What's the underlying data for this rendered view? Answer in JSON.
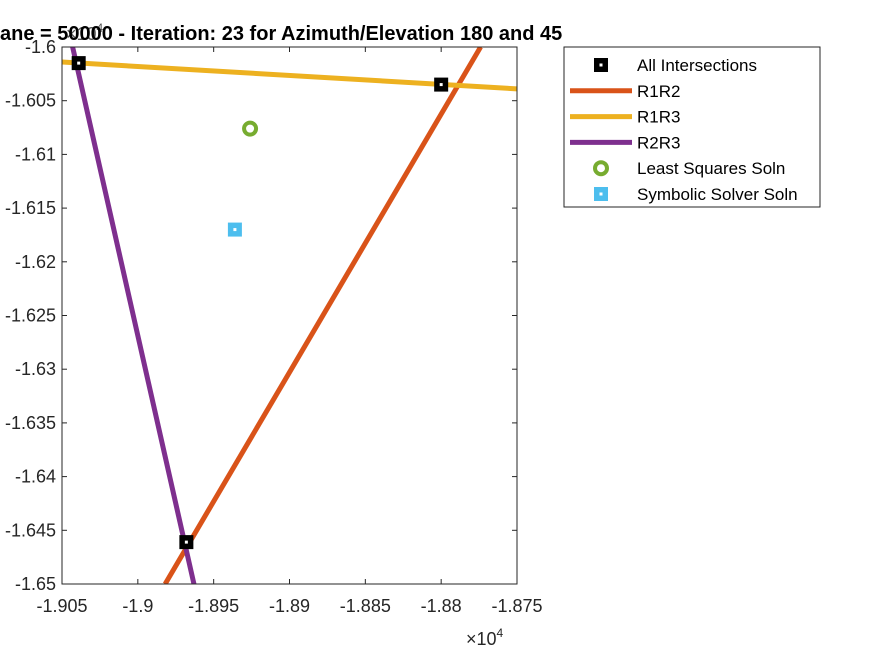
{
  "chart_data": {
    "type": "line",
    "title": "ane = 50000 - Iteration: 23 for Azimuth/Elevation 180 and 45",
    "xlabel": "",
    "ylabel": "",
    "x_scale": 10000,
    "y_scale": 10000,
    "x_exponent_label": "×10",
    "x_exponent_power": "4",
    "y_exponent_label": "×10",
    "y_exponent_power": "4",
    "xlim": [
      -1.905,
      -1.875
    ],
    "ylim": [
      -1.65,
      -1.6
    ],
    "xticks": [
      -1.905,
      -1.9,
      -1.895,
      -1.89,
      -1.885,
      -1.88,
      -1.875
    ],
    "xtick_labels": [
      "-1.905",
      "-1.9",
      "-1.895",
      "-1.89",
      "-1.885",
      "-1.88",
      "-1.875"
    ],
    "yticks": [
      -1.6,
      -1.605,
      -1.61,
      -1.615,
      -1.62,
      -1.625,
      -1.63,
      -1.635,
      -1.64,
      -1.645,
      -1.65
    ],
    "ytick_labels": [
      "-1.6",
      "-1.605",
      "-1.61",
      "-1.615",
      "-1.62",
      "-1.625",
      "-1.63",
      "-1.635",
      "-1.64",
      "-1.645",
      "-1.65"
    ],
    "grid": false,
    "legend_position": "outside-top-right",
    "series": [
      {
        "name": "R1R2",
        "kind": "line",
        "color": "#D95319",
        "points": [
          [
            -1.8982,
            -1.65
          ],
          [
            -1.8774,
            -1.6
          ]
        ]
      },
      {
        "name": "R1R3",
        "kind": "line",
        "color": "#EDB120",
        "points": [
          [
            -1.905,
            -1.6014
          ],
          [
            -1.875,
            -1.6039
          ]
        ]
      },
      {
        "name": "R2R3",
        "kind": "line",
        "color": "#7E2F8E",
        "points": [
          [
            -1.9043,
            -1.6
          ],
          [
            -1.8963,
            -1.65
          ]
        ]
      },
      {
        "name": "All Intersections",
        "kind": "marker",
        "marker": "filled-square",
        "color": "#000000",
        "points": [
          [
            -1.9039,
            -1.6015
          ],
          [
            -1.88,
            -1.6035
          ],
          [
            -1.8968,
            -1.6461
          ]
        ]
      },
      {
        "name": "Least Squares Soln",
        "kind": "marker",
        "marker": "ring",
        "color": "#77AC30",
        "points": [
          [
            -1.8926,
            -1.6076
          ]
        ]
      },
      {
        "name": "Symbolic Solver Soln",
        "kind": "marker",
        "marker": "filled-square",
        "color": "#4DBEEE",
        "points": [
          [
            -1.8936,
            -1.617
          ]
        ]
      }
    ],
    "legend": [
      {
        "label": "All Intersections",
        "series": "All Intersections"
      },
      {
        "label": "R1R2",
        "series": "R1R2"
      },
      {
        "label": "R1R3",
        "series": "R1R3"
      },
      {
        "label": "R2R3",
        "series": "R2R3"
      },
      {
        "label": "Least Squares Soln",
        "series": "Least Squares Soln"
      },
      {
        "label": "Symbolic Solver Soln",
        "series": "Symbolic Solver Soln"
      }
    ]
  }
}
